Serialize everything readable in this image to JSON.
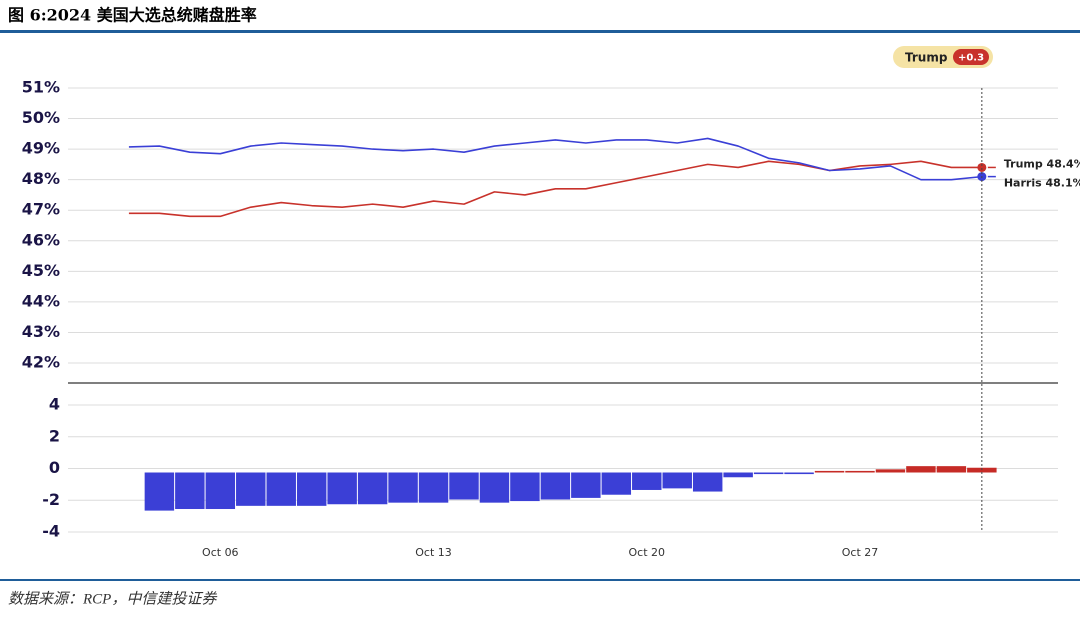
{
  "header": {
    "title": "图 6:2024 美国大选总统赌盘胜率"
  },
  "footer": {
    "source": "数据来源：RCP，中信建投证券"
  },
  "chart_data": [
    {
      "type": "line",
      "x": [
        3,
        4,
        5,
        6,
        7,
        8,
        9,
        10,
        11,
        12,
        13,
        14,
        15,
        16,
        17,
        18,
        19,
        20,
        21,
        22,
        23,
        24,
        25,
        26,
        27,
        28,
        29,
        30,
        31
      ],
      "xlim": [
        1,
        33.5
      ],
      "ylim": [
        42,
        51
      ],
      "yticks": [
        {
          "value": 42,
          "label": "42%"
        },
        {
          "value": 43,
          "label": "43%"
        },
        {
          "value": 44,
          "label": "44%"
        },
        {
          "value": 45,
          "label": "45%"
        },
        {
          "value": 46,
          "label": "46%"
        },
        {
          "value": 47,
          "label": "47%"
        },
        {
          "value": 48,
          "label": "48%"
        },
        {
          "value": 49,
          "label": "49%"
        },
        {
          "value": 50,
          "label": "50%"
        },
        {
          "value": 51,
          "label": "51%"
        }
      ],
      "grid": true,
      "series": [
        {
          "name": "Trump",
          "color": "#c8322b",
          "end_label": "Trump 48.4%",
          "values": [
            46.9,
            46.9,
            46.8,
            46.8,
            47.1,
            47.25,
            47.15,
            47.1,
            47.2,
            47.1,
            47.3,
            47.2,
            47.6,
            47.5,
            47.7,
            47.7,
            47.9,
            48.1,
            48.3,
            48.5,
            48.4,
            48.6,
            48.5,
            48.3,
            48.45,
            48.5,
            48.6,
            48.4,
            48.4
          ]
        },
        {
          "name": "Harris",
          "color": "#3a3fd6",
          "end_label": "Harris 48.1%",
          "values": [
            49.07,
            49.1,
            48.9,
            48.85,
            49.1,
            49.2,
            49.15,
            49.1,
            49.0,
            48.95,
            49.0,
            48.9,
            49.1,
            49.2,
            49.3,
            49.2,
            49.3,
            49.3,
            49.2,
            49.35,
            49.1,
            48.7,
            48.55,
            48.3,
            48.35,
            48.45,
            48.0,
            48.0,
            48.1
          ]
        }
      ],
      "annotation": {
        "leader": "Trump",
        "spread": "+0.3"
      }
    },
    {
      "type": "bar",
      "x": [
        4,
        5,
        6,
        7,
        8,
        9,
        10,
        11,
        12,
        13,
        14,
        15,
        16,
        17,
        18,
        19,
        20,
        21,
        22,
        23,
        24,
        25,
        26,
        27,
        28,
        29,
        30,
        31
      ],
      "values": [
        -2.4,
        -2.3,
        -2.3,
        -2.1,
        -2.1,
        -2.1,
        -2.0,
        -2.0,
        -1.9,
        -1.9,
        -1.7,
        -1.9,
        -1.8,
        -1.7,
        -1.6,
        -1.4,
        -1.1,
        -1.0,
        -1.2,
        -0.3,
        -0.1,
        -0.1,
        0.1,
        0.1,
        0.2,
        0.4,
        0.4,
        0.3
      ],
      "positive_color": "#c62b26",
      "negative_color": "#3b3fd6",
      "xlim": [
        1,
        33.5
      ],
      "xticks": [
        {
          "value": 6,
          "label": "Oct 06"
        },
        {
          "value": 13,
          "label": "Oct 13"
        },
        {
          "value": 20,
          "label": "Oct 20"
        },
        {
          "value": 27,
          "label": "Oct 27"
        }
      ],
      "ylim": [
        -4,
        4
      ],
      "yticks": [
        -4,
        -2,
        0,
        2,
        4
      ],
      "grid": true
    }
  ]
}
